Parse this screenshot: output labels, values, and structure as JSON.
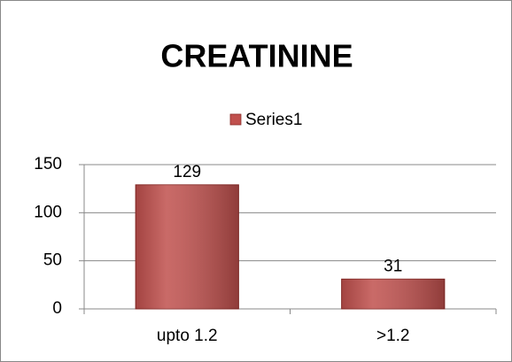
{
  "chart_data": {
    "type": "bar",
    "title": "CREATININE",
    "categories": [
      "upto 1.2",
      ">1.2"
    ],
    "series": [
      {
        "name": "Series1",
        "color": "#c0504d",
        "values": [
          129,
          31
        ]
      }
    ],
    "ylim": [
      0,
      150
    ],
    "yticks": [
      0,
      50,
      100,
      150
    ],
    "grid": true,
    "legend": "top"
  }
}
